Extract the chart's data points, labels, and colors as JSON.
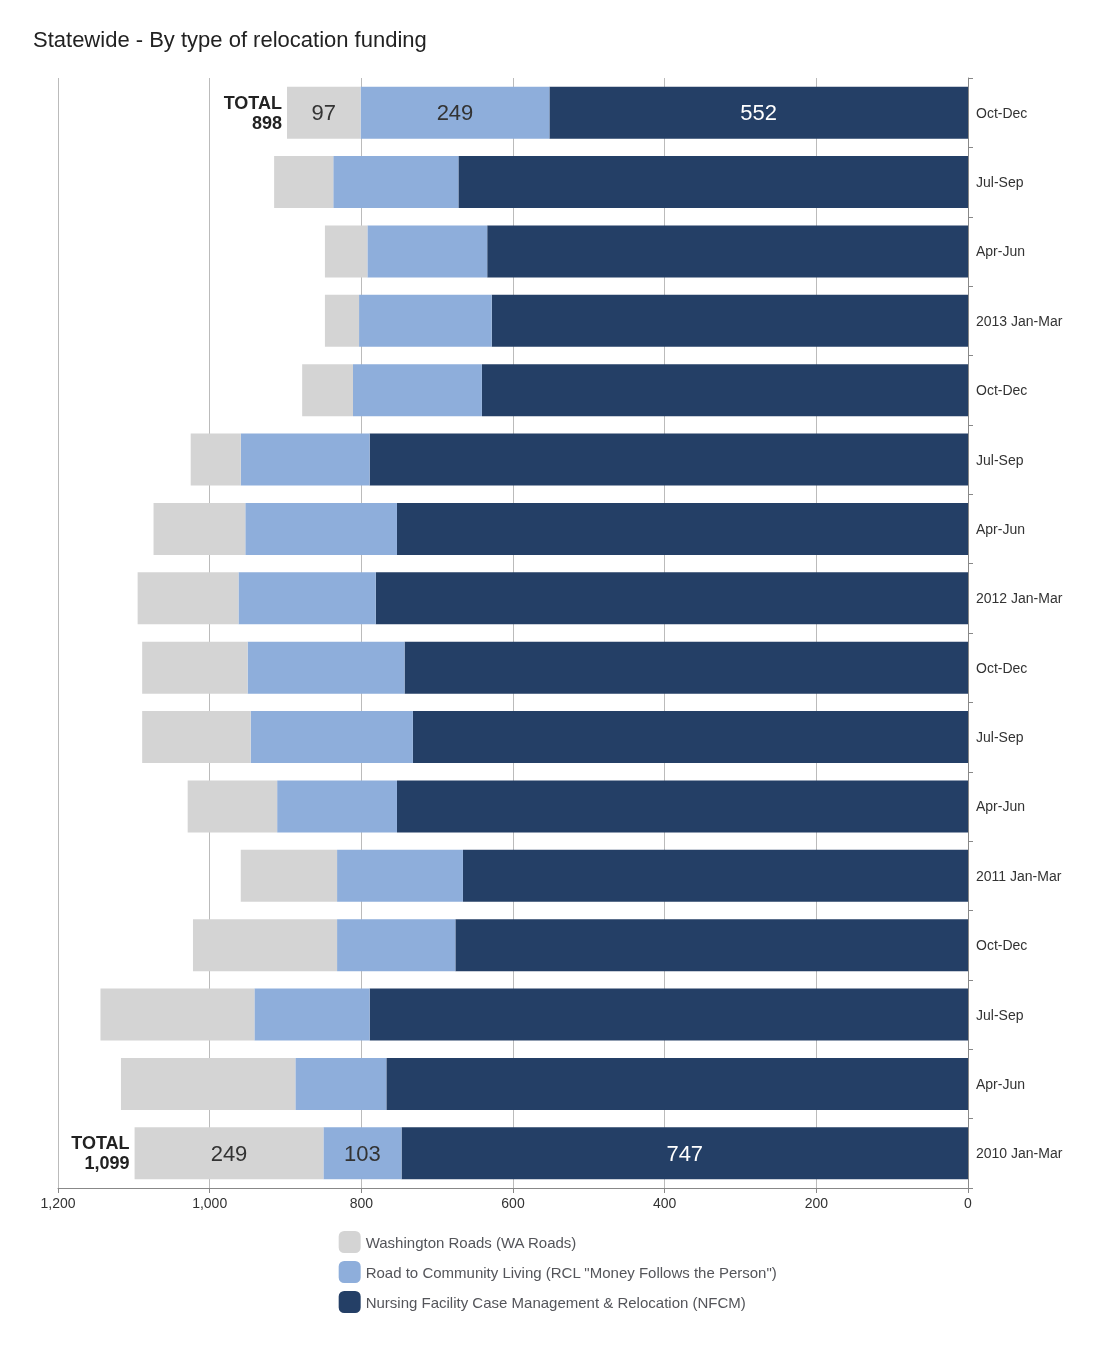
{
  "chart_data": {
    "type": "bar",
    "title": "Statewide - By type of relocation funding",
    "orientation": "horizontal",
    "stacked": true,
    "categories": [
      "Oct-Dec",
      "Jul-Sep",
      "Apr-Jun",
      "2013 Jan-Mar",
      "Oct-Dec",
      "Jul-Sep",
      "Apr-Jun",
      "2012 Jan-Mar",
      "Oct-Dec",
      "Jul-Sep",
      "Apr-Jun",
      "2011 Jan-Mar",
      "Oct-Dec",
      "Jul-Sep",
      "Apr-Jun",
      "2010 Jan-Mar"
    ],
    "series": [
      {
        "name": "Nursing Facility Case Management & Relocation (NFCM)",
        "color": "#243f66",
        "values": [
          552,
          672,
          634,
          628,
          641,
          789,
          753,
          781,
          743,
          732,
          753,
          666,
          676,
          789,
          767,
          747
        ],
        "value_labels": [
          "552",
          null,
          null,
          null,
          null,
          null,
          null,
          null,
          null,
          null,
          null,
          null,
          null,
          null,
          null,
          "747"
        ]
      },
      {
        "name": "Road to Community Living (RCL \"Money Follows the Person\")",
        "color": "#8eaedb",
        "values": [
          249,
          165,
          158,
          175,
          170,
          170,
          200,
          181,
          207,
          214,
          158,
          166,
          156,
          152,
          120,
          103
        ],
        "value_labels": [
          "249",
          null,
          null,
          null,
          null,
          null,
          null,
          null,
          null,
          null,
          null,
          null,
          null,
          null,
          null,
          "103"
        ]
      },
      {
        "name": "Washington Roads (WA Roads)",
        "color": "#d4d4d4",
        "values": [
          97,
          78,
          56,
          45,
          67,
          66,
          121,
          133,
          139,
          143,
          118,
          127,
          190,
          203,
          230,
          249
        ],
        "value_labels": [
          "97",
          null,
          null,
          null,
          null,
          null,
          null,
          null,
          null,
          null,
          null,
          null,
          null,
          null,
          null,
          "249"
        ]
      }
    ],
    "totals": [
      "TOTAL\n898",
      null,
      null,
      null,
      null,
      null,
      null,
      null,
      null,
      null,
      null,
      null,
      null,
      null,
      null,
      "TOTAL\n1,099"
    ],
    "xlim": [
      1200,
      0
    ],
    "xticks": [
      {
        "value": 1200,
        "label": "1,200"
      },
      {
        "value": 1000,
        "label": "1,000"
      },
      800,
      600,
      400,
      200,
      0
    ],
    "grid": "x",
    "legend": "bottom"
  }
}
